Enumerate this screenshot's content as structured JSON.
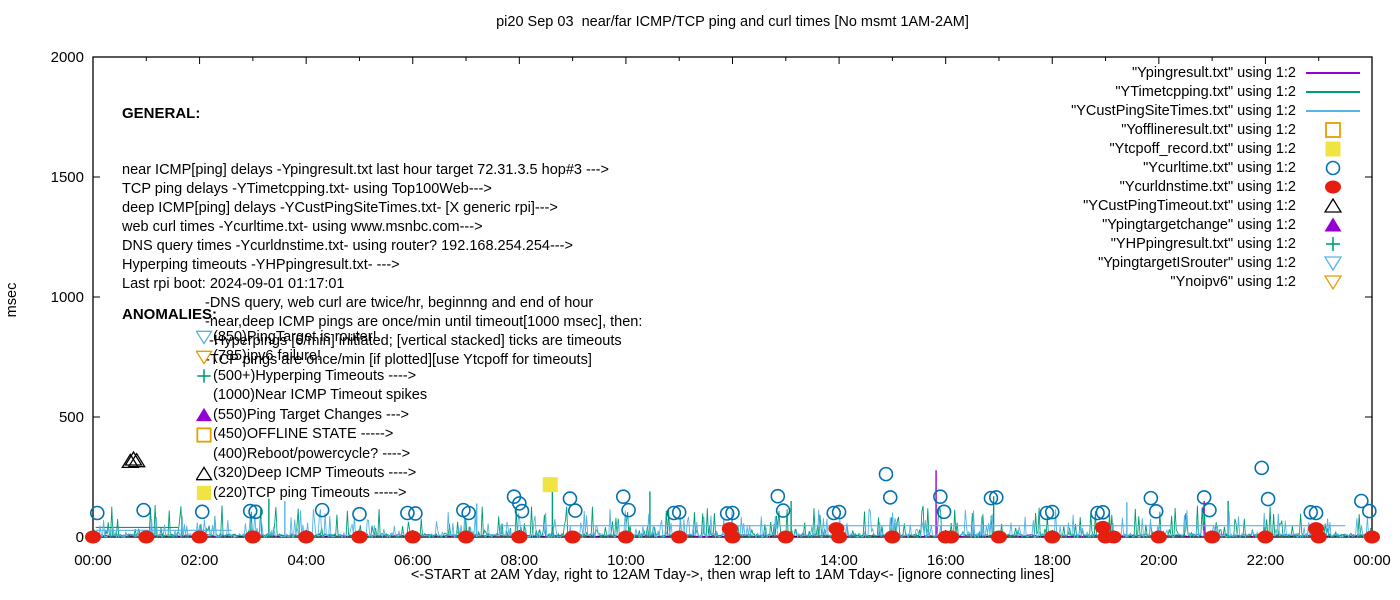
{
  "title": "pi20 Sep 03  near/far ICMP/TCP ping and curl times [No msmt 1AM-2AM]",
  "xlabel": "<-START at 2AM Yday, right to 12AM Tday->, then wrap left to 1AM Tday<- [ignore connecting lines]",
  "ylabel": "msec",
  "general": {
    "header": "GENERAL:",
    "lines": [
      "near ICMP[ping] delays -Ypingresult.txt last hour target 72.31.3.5 hop#3 --->",
      "TCP ping delays -YTimetcpping.txt- using Top100Web--->",
      "deep ICMP[ping] delays -YCustPingSiteTimes.txt- [X generic rpi]--->",
      "web curl times -Ycurltime.txt- using www.msnbc.com--->",
      "DNS query times -Ycurldnstime.txt- using router? 192.168.254.254--->",
      "Hyperping timeouts -YHPpingresult.txt- --->",
      "Last rpi boot: 2024-09-01 01:17:01"
    ],
    "indented_lines": [
      "-DNS query, web curl are twice/hr, beginnng and end of hour",
      "-near,deep ICMP pings are once/min until timeout[1000 msec], then:",
      " -Hyperpings [6/min] initiated; [vertical stacked] ticks are timeouts",
      "-TCP pings are once/min [if plotted][use Ytcpoff for timeouts]"
    ]
  },
  "anomalies": {
    "header": "ANOMALIES:",
    "items": [
      {
        "marker": "triangle-down-open",
        "color": "#56b4e9",
        "text": "(850)PingTarget is router!"
      },
      {
        "marker": "triangle-down-open",
        "color": "#e69f00",
        "text": "(785)ipv6 failure!"
      },
      {
        "marker": "plus",
        "color": "#009e73",
        "text": "(500+)Hyperping Timeouts ---->"
      },
      {
        "marker": "none",
        "color": "",
        "text": "(1000)Near ICMP Timeout spikes"
      },
      {
        "marker": "triangle-up-filled",
        "color": "#9400d3",
        "text": "(550)Ping Target Changes --->"
      },
      {
        "marker": "square-open",
        "color": "#e69f00",
        "text": "(450)OFFLINE STATE ----->"
      },
      {
        "marker": "none",
        "color": "",
        "text": "(400)Reboot/powercycle? ---->"
      },
      {
        "marker": "triangle-up-open",
        "color": "#000000",
        "text": "(320)Deep ICMP Timeouts ---->"
      },
      {
        "marker": "square-filled",
        "color": "#f0e442",
        "text": "(220)TCP ping Timeouts ----->"
      }
    ]
  },
  "legend": [
    {
      "label": "\"Ypingresult.txt\" using 1:2",
      "marker": "line",
      "color": "#9400d3"
    },
    {
      "label": "\"YTimetcpping.txt\" using 1:2",
      "marker": "line",
      "color": "#009e73"
    },
    {
      "label": "\"YCustPingSiteTimes.txt\" using 1:2",
      "marker": "line",
      "color": "#56b4e9"
    },
    {
      "label": "\"Yofflineresult.txt\" using 1:2",
      "marker": "square-open",
      "color": "#e69f00"
    },
    {
      "label": "\"Ytcpoff_record.txt\" using 1:2",
      "marker": "square-filled",
      "color": "#f0e442"
    },
    {
      "label": "\"Ycurltime.txt\" using 1:2",
      "marker": "circle-open",
      "color": "#0072b2"
    },
    {
      "label": "\"Ycurldnstime.txt\" using 1:2",
      "marker": "dot",
      "color": "#e51e10"
    },
    {
      "label": "\"YCustPingTimeout.txt\" using 1:2",
      "marker": "triangle-up-open",
      "color": "#000000"
    },
    {
      "label": "\"Ypingtargetchange\" using 1:2",
      "marker": "triangle-up-filled",
      "color": "#9400d3"
    },
    {
      "label": "\"YHPpingresult.txt\" using 1:2",
      "marker": "plus",
      "color": "#009e73"
    },
    {
      "label": "\"YpingtargetISrouter\" using 1:2",
      "marker": "triangle-down-open",
      "color": "#56b4e9"
    },
    {
      "label": "\"Ynoipv6\" using 1:2",
      "marker": "triangle-down-open",
      "color": "#e69f00"
    }
  ],
  "chart_data": {
    "type": "line",
    "title": "pi20 Sep 03  near/far ICMP/TCP ping and curl times [No msmt 1AM-2AM]",
    "xlabel": "<-START at 2AM Yday, right to 12AM Tday->, then wrap left to 1AM Tday<- [ignore connecting lines]",
    "ylabel": "msec",
    "grid": false,
    "legend_position": "top-right",
    "x_axis": {
      "hours": 24,
      "tick_every_hours": 2,
      "ticks": [
        "00:00",
        "02:00",
        "04:00",
        "06:00",
        "08:00",
        "10:00",
        "12:00",
        "14:00",
        "16:00",
        "18:00",
        "20:00",
        "22:00",
        "00:00"
      ]
    },
    "y_axis": {
      "ticks": [
        0,
        500,
        1000,
        1500,
        2000
      ],
      "range": [
        0,
        2000
      ]
    },
    "series": [
      {
        "name": "Ypingresult near ICMP delay",
        "color": "#9400d3",
        "style": "baseline",
        "baseline_msec": 8,
        "seed": 5,
        "spikes": [
          [
            15.82,
            278
          ],
          [
            20.85,
            150
          ]
        ]
      },
      {
        "name": "YTimetcpping TCP ping delay",
        "color": "#009e73",
        "style": "noise",
        "amp_msec": 135,
        "seed": 11,
        "spikes": [
          [
            3.3,
            160
          ],
          [
            8.62,
            205
          ],
          [
            10.45,
            190
          ],
          [
            13.1,
            150
          ],
          [
            16.9,
            170
          ],
          [
            21.3,
            150
          ]
        ],
        "flat_segments": [
          [
            0.05,
            1.6,
            40
          ]
        ]
      },
      {
        "name": "YCustPingSiteTimes deep ICMP delay",
        "color": "#56b4e9",
        "style": "noise",
        "amp_msec": 118,
        "seed": 29,
        "spikes": [
          [
            3.6,
            150
          ],
          [
            7.2,
            140
          ],
          [
            19.4,
            145
          ]
        ],
        "flat_segments": [
          [
            7.6,
            23.5,
            47
          ],
          [
            0.05,
            2.6,
            28
          ]
        ]
      }
    ],
    "markers": [
      {
        "name": "Ycurltime web curl times",
        "shape": "circle-open",
        "color": "#0072b2",
        "points": [
          [
            0.08,
            100
          ],
          [
            0.95,
            112
          ],
          [
            2.05,
            105
          ],
          [
            2.95,
            108
          ],
          [
            3.05,
            105
          ],
          [
            4.3,
            112
          ],
          [
            5.0,
            95
          ],
          [
            5.9,
            100
          ],
          [
            6.05,
            98
          ],
          [
            6.95,
            112
          ],
          [
            7.05,
            100
          ],
          [
            7.9,
            168
          ],
          [
            8.0,
            140
          ],
          [
            8.05,
            108
          ],
          [
            8.95,
            160
          ],
          [
            9.05,
            110
          ],
          [
            9.95,
            168
          ],
          [
            10.05,
            112
          ],
          [
            10.9,
            100
          ],
          [
            11.0,
            103
          ],
          [
            11.9,
            98
          ],
          [
            12.0,
            100
          ],
          [
            12.85,
            170
          ],
          [
            12.95,
            110
          ],
          [
            13.9,
            100
          ],
          [
            14.0,
            104
          ],
          [
            14.88,
            262
          ],
          [
            14.96,
            165
          ],
          [
            15.9,
            168
          ],
          [
            15.97,
            105
          ],
          [
            16.85,
            162
          ],
          [
            16.95,
            165
          ],
          [
            17.9,
            100
          ],
          [
            18.0,
            104
          ],
          [
            18.85,
            100
          ],
          [
            18.95,
            103
          ],
          [
            19.85,
            162
          ],
          [
            19.95,
            107
          ],
          [
            20.85,
            165
          ],
          [
            20.95,
            112
          ],
          [
            21.93,
            288
          ],
          [
            22.05,
            158
          ],
          [
            22.85,
            103
          ],
          [
            22.95,
            100
          ],
          [
            23.8,
            150
          ],
          [
            23.95,
            108
          ]
        ]
      },
      {
        "name": "Ycurldnstime DNS query times",
        "shape": "dot",
        "color": "#e51e10",
        "points": [
          [
            0,
            0
          ],
          [
            1,
            0
          ],
          [
            2,
            0
          ],
          [
            3,
            0
          ],
          [
            4,
            0
          ],
          [
            5,
            0
          ],
          [
            6,
            0
          ],
          [
            7,
            0
          ],
          [
            8,
            0
          ],
          [
            9,
            0
          ],
          [
            10,
            0
          ],
          [
            11,
            0
          ],
          [
            11.95,
            35
          ],
          [
            12,
            0
          ],
          [
            13,
            0
          ],
          [
            13.95,
            35
          ],
          [
            14,
            0
          ],
          [
            15,
            0
          ],
          [
            16,
            0
          ],
          [
            16.1,
            0
          ],
          [
            17,
            0
          ],
          [
            18,
            0
          ],
          [
            18.95,
            40
          ],
          [
            19,
            0
          ],
          [
            19.15,
            0
          ],
          [
            20,
            0
          ],
          [
            21,
            0
          ],
          [
            22,
            0
          ],
          [
            22.95,
            35
          ],
          [
            23,
            0
          ],
          [
            24,
            0
          ]
        ]
      },
      {
        "name": "YCustPingTimeout deep ICMP timeouts",
        "shape": "triangle-up-open",
        "color": "#000000",
        "points": [
          [
            0.7,
            315
          ],
          [
            0.76,
            325
          ],
          [
            0.82,
            318
          ]
        ]
      },
      {
        "name": "Ytcpoff_record TCP ping timeouts",
        "shape": "square-filled",
        "color": "#f0e442",
        "points": [
          [
            8.58,
            218
          ]
        ]
      }
    ]
  }
}
